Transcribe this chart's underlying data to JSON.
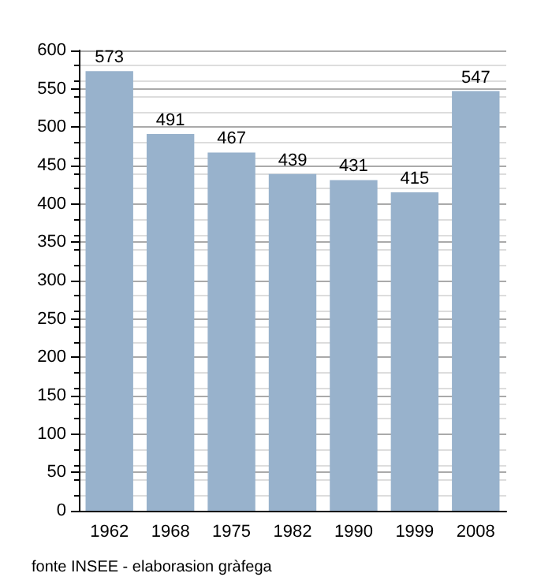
{
  "chart_data": {
    "type": "bar",
    "categories": [
      "1962",
      "1968",
      "1975",
      "1982",
      "1990",
      "1999",
      "2008"
    ],
    "values": [
      573,
      491,
      467,
      439,
      431,
      415,
      547
    ],
    "color": "#98b2cc",
    "data_labels": true,
    "ylim": [
      0,
      600
    ],
    "yticks": [
      0,
      50,
      100,
      150,
      200,
      250,
      300,
      350,
      400,
      450,
      500,
      550,
      600
    ],
    "grid": "y",
    "annotations": [
      "fonte INSEE - elaborasion gràfega"
    ]
  }
}
